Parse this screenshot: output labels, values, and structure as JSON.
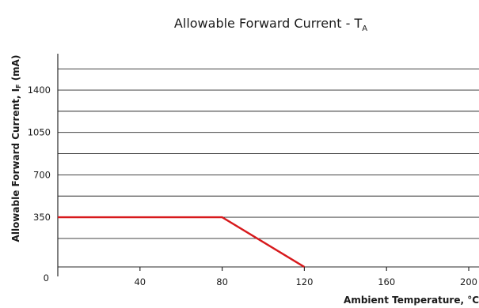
{
  "chart_data": {
    "type": "line",
    "title_main": "Allowable Forward Current - T",
    "title_sub": "A",
    "ylabel_main": "Allowable Forward Current, I",
    "ylabel_sub": "F",
    "ylabel_end": " (mA)",
    "xlabel": "Ambient Temperature, °C",
    "x_ticks": [
      40,
      80,
      120,
      160,
      200
    ],
    "x_origin_label": "0",
    "y_ticks": [
      350,
      700,
      1050,
      1400
    ],
    "xlim": [
      0,
      205
    ],
    "ylim": [
      -60,
      1700
    ],
    "y_grid": [
      -60,
      175,
      350,
      525,
      700,
      875,
      1050,
      1225,
      1400,
      1575
    ],
    "grid": true,
    "series": [
      {
        "x": [
          0,
          80,
          120
        ],
        "y": [
          350,
          350,
          -60
        ],
        "color": "#d7191c"
      }
    ]
  }
}
